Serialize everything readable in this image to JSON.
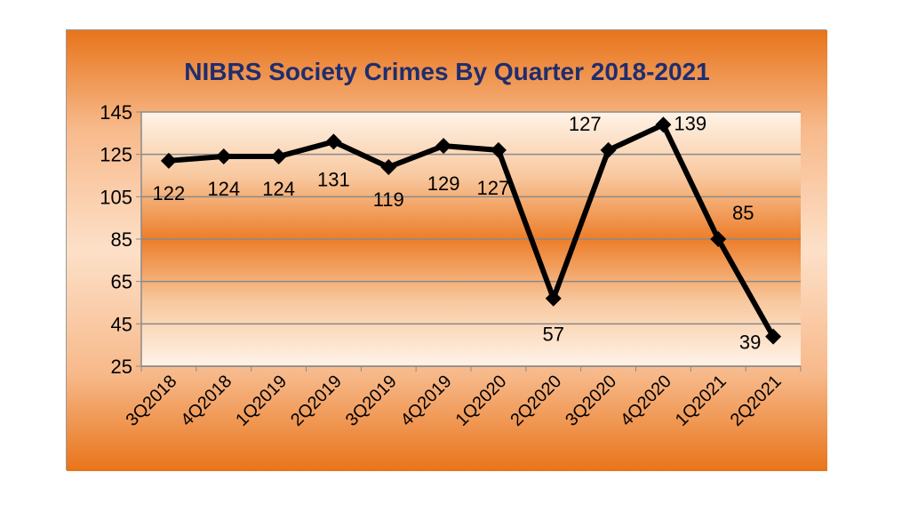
{
  "chart_data": {
    "type": "line",
    "title": "NIBRS Society Crimes By Quarter 2018-2021",
    "categories": [
      "3Q2018",
      "4Q2018",
      "1Q2019",
      "2Q2019",
      "3Q2019",
      "4Q2019",
      "1Q2020",
      "2Q2020",
      "3Q2020",
      "4Q2020",
      "1Q2021",
      "2Q2021"
    ],
    "values": [
      122,
      124,
      124,
      131,
      119,
      129,
      127,
      57,
      127,
      139,
      85,
      39
    ],
    "data_labels": [
      "122",
      "124",
      "124",
      "131",
      "119",
      "129",
      "127",
      "57",
      "127",
      "139",
      "85",
      "39"
    ],
    "ylim": [
      25,
      145
    ],
    "yticks": [
      25,
      45,
      65,
      85,
      105,
      125,
      145
    ],
    "ytick_labels": [
      "25",
      "45",
      "65",
      "85",
      "105",
      "125",
      "145"
    ],
    "xlabel": "",
    "ylabel": "",
    "grid": true,
    "legend": "none",
    "colors": {
      "frame_orange": "#e8741a",
      "frame_light": "#fbd3b0",
      "plot_light": "#fff0e2",
      "plot_orange": "#ec7e2a",
      "line": "#000000",
      "grid": "#8a8a8a",
      "title": "#1f2d6e"
    }
  }
}
